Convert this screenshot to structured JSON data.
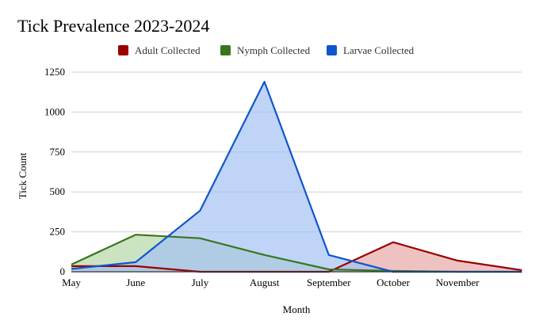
{
  "chart_data": {
    "type": "area",
    "title": "Tick Prevalence 2023-2024",
    "xlabel": "Month",
    "ylabel": "Tick Count",
    "ylim": [
      0,
      1250
    ],
    "yticks": [
      "0",
      "250",
      "500",
      "750",
      "1000",
      "1250"
    ],
    "grid": true,
    "legend": "top",
    "x_tick_labels": [
      "May",
      "June",
      "July",
      "August",
      "September",
      "October",
      "November"
    ],
    "x_count": 8,
    "series": [
      {
        "name": "Adult Collected",
        "color": "#990000",
        "fill": "#e8a8a8",
        "values": [
          35,
          35,
          0,
          0,
          0,
          185,
          70,
          10
        ]
      },
      {
        "name": "Nymph Collected",
        "color": "#38761d",
        "fill": "#b6d7a8",
        "values": [
          45,
          232,
          210,
          105,
          15,
          5,
          0,
          0
        ]
      },
      {
        "name": "Larvae Collected",
        "color": "#1155cc",
        "fill": "#a4c2f4",
        "values": [
          18,
          60,
          383,
          1190,
          105,
          0,
          0,
          0
        ]
      }
    ]
  }
}
